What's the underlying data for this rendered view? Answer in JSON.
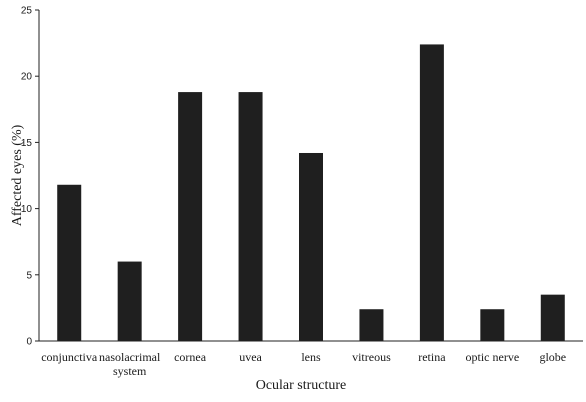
{
  "chart_data": {
    "type": "bar",
    "title": "",
    "xlabel": "Ocular structure",
    "ylabel": "Affected eyes (%)",
    "ylim": [
      0,
      25
    ],
    "yticks": [
      0,
      5,
      10,
      15,
      20,
      25
    ],
    "grid": false,
    "bar_color": "#1f1f1f",
    "categories": [
      [
        "conjunctiva"
      ],
      [
        "nasolacrimal",
        "system"
      ],
      [
        "cornea"
      ],
      [
        "uvea"
      ],
      [
        "lens"
      ],
      [
        "vitreous"
      ],
      [
        "retina"
      ],
      [
        "optic nerve"
      ],
      [
        "globe"
      ]
    ],
    "values": [
      11.8,
      6.0,
      18.8,
      18.8,
      14.2,
      2.4,
      22.4,
      2.4,
      3.5
    ]
  }
}
